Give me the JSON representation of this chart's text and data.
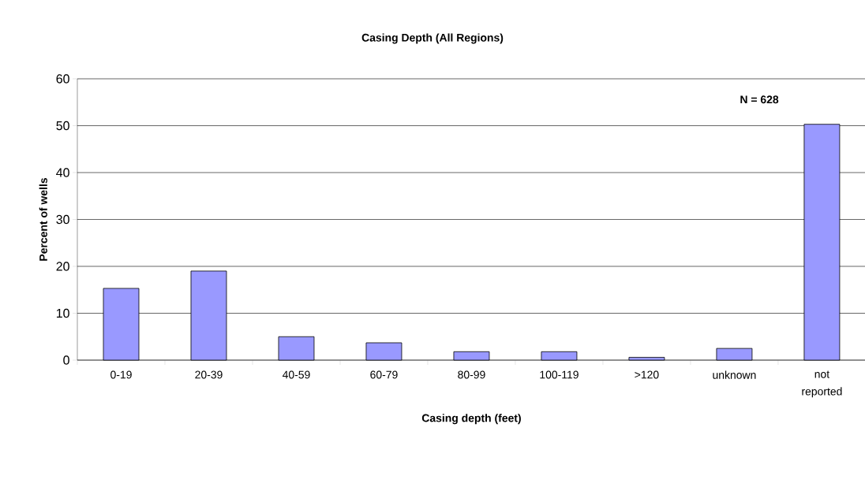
{
  "chart_data": {
    "type": "bar",
    "title": "**Casing Depth (All Regions)**",
    "xlabel": "**Casing depth (feet)**",
    "ylabel": "**Percent of wells**",
    "categories": [
      "0-19",
      "20-39",
      "40-59",
      "60-79",
      "80-99",
      "100-119",
      ">120",
      "unknown",
      "not reported"
    ],
    "values": [
      15.3,
      19.0,
      5.0,
      3.7,
      1.8,
      1.8,
      0.6,
      2.5,
      50.3
    ],
    "color": "#9999ff",
    "ylim": [
      0,
      60
    ],
    "yticks": [
      0,
      10,
      20,
      30,
      40,
      50,
      60
    ],
    "grid": "y",
    "annotations": [
      "**N = 628**"
    ]
  }
}
